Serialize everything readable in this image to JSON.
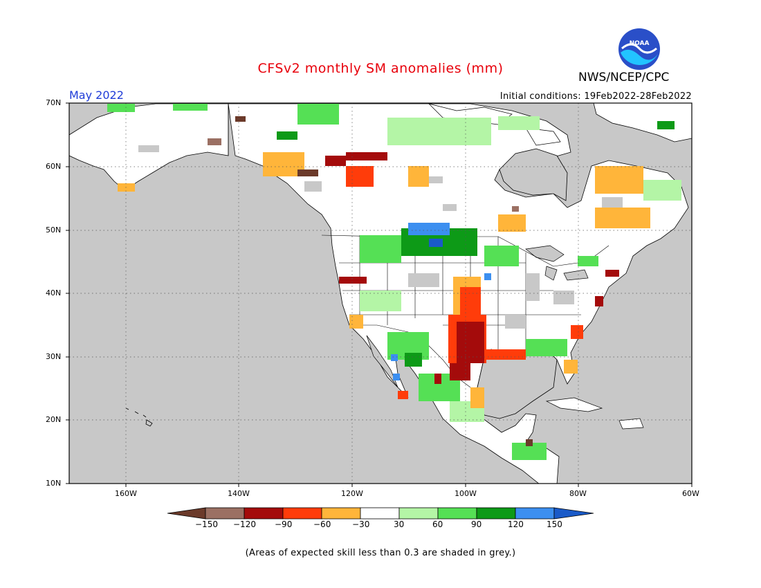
{
  "header": {
    "title": "CFSv2 monthly SM anomalies (mm)",
    "month": "May 2022",
    "agency": "NWS/NCEP/CPC",
    "logo_text": "NOAA",
    "initial_conditions": "Initial conditions: 19Feb2022-28Feb2022"
  },
  "map": {
    "lon_range": [
      -170,
      -60
    ],
    "lat_range": [
      10,
      70
    ],
    "lat_labels": [
      "70N",
      "60N",
      "50N",
      "40N",
      "30N",
      "20N",
      "10N"
    ],
    "lon_labels": [
      "160W",
      "140W",
      "120W",
      "100W",
      "80W",
      "60W"
    ],
    "ocean_color": "#c8c8c8"
  },
  "colorbar": {
    "labels": [
      "−150",
      "−120",
      "−90",
      "−60",
      "−30",
      "30",
      "60",
      "90",
      "120",
      "150"
    ],
    "colors": [
      "#6b3a2a",
      "#9b7063",
      "#a40b0b",
      "#ff3c0a",
      "#ffb53a",
      "#ffffff",
      "#b4f5a6",
      "#55e055",
      "#0d9a17",
      "#3c8ff0",
      "#1a5ac8"
    ]
  },
  "footnote": "(Areas of expected skill less than 0.3 are shaded in grey.)"
}
